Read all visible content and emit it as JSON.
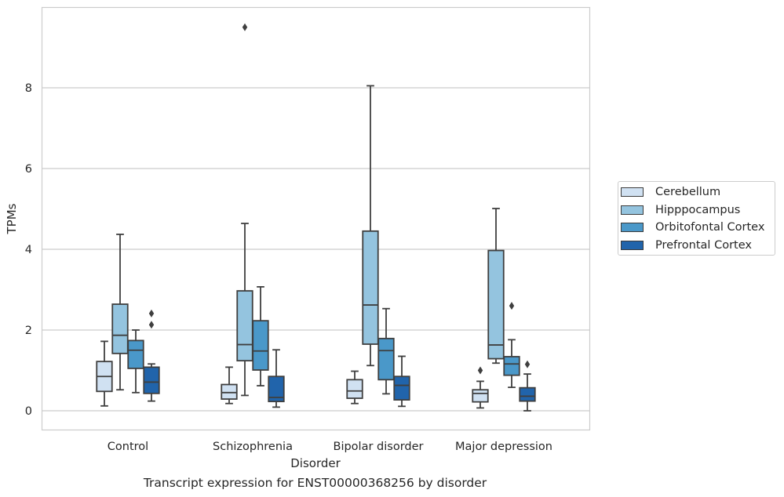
{
  "chart_data": {
    "type": "box",
    "title": "",
    "caption": "Transcript expression for ENST00000368256 by disorder",
    "xlabel": "Disorder",
    "ylabel": "TPMs",
    "ylim": [
      -0.45,
      10.0
    ],
    "yticks": [
      0,
      2,
      4,
      6,
      8
    ],
    "grid": "horizontal",
    "legend_position": "right",
    "categories": [
      "Control",
      "Schizophrenia",
      "Bipolar disorder",
      "Major depression"
    ],
    "series": [
      {
        "name": "Cerebellum",
        "color": "#d0e1f2",
        "boxes": [
          {
            "whisker_low": 0.12,
            "q1": 0.48,
            "median": 0.85,
            "q3": 1.22,
            "whisker_high": 1.72,
            "outliers": []
          },
          {
            "whisker_low": 0.18,
            "q1": 0.29,
            "median": 0.45,
            "q3": 0.65,
            "whisker_high": 1.08,
            "outliers": []
          },
          {
            "whisker_low": 0.18,
            "q1": 0.31,
            "median": 0.49,
            "q3": 0.77,
            "whisker_high": 0.98,
            "outliers": []
          },
          {
            "whisker_low": 0.07,
            "q1": 0.22,
            "median": 0.43,
            "q3": 0.52,
            "whisker_high": 0.73,
            "outliers": [
              1.0
            ]
          }
        ]
      },
      {
        "name": "Hipppocampus",
        "color": "#94c4df",
        "boxes": [
          {
            "whisker_low": 0.52,
            "q1": 1.42,
            "median": 1.87,
            "q3": 2.64,
            "whisker_high": 4.37,
            "outliers": []
          },
          {
            "whisker_low": 0.38,
            "q1": 1.24,
            "median": 1.64,
            "q3": 2.97,
            "whisker_high": 4.64,
            "outliers": [
              9.5
            ]
          },
          {
            "whisker_low": 1.12,
            "q1": 1.65,
            "median": 2.62,
            "q3": 4.45,
            "whisker_high": 8.05,
            "outliers": []
          },
          {
            "whisker_low": 1.18,
            "q1": 1.29,
            "median": 1.63,
            "q3": 3.97,
            "whisker_high": 5.01,
            "outliers": []
          }
        ]
      },
      {
        "name": "Orbitofontal Cortex",
        "color": "#4a98c9",
        "boxes": [
          {
            "whisker_low": 0.45,
            "q1": 1.05,
            "median": 1.5,
            "q3": 1.74,
            "whisker_high": 2.0,
            "outliers": []
          },
          {
            "whisker_low": 0.62,
            "q1": 1.01,
            "median": 1.48,
            "q3": 2.23,
            "whisker_high": 3.07,
            "outliers": []
          },
          {
            "whisker_low": 0.42,
            "q1": 0.77,
            "median": 1.49,
            "q3": 1.79,
            "whisker_high": 2.53,
            "outliers": []
          },
          {
            "whisker_low": 0.58,
            "q1": 0.88,
            "median": 1.16,
            "q3": 1.34,
            "whisker_high": 1.76,
            "outliers": [
              2.6
            ]
          }
        ]
      },
      {
        "name": "Prefrontal Cortex",
        "color": "#2164ab",
        "boxes": [
          {
            "whisker_low": 0.24,
            "q1": 0.43,
            "median": 0.71,
            "q3": 1.08,
            "whisker_high": 1.16,
            "outliers": [
              2.13,
              2.41
            ]
          },
          {
            "whisker_low": 0.09,
            "q1": 0.23,
            "median": 0.33,
            "q3": 0.85,
            "whisker_high": 1.51,
            "outliers": []
          },
          {
            "whisker_low": 0.11,
            "q1": 0.27,
            "median": 0.63,
            "q3": 0.85,
            "whisker_high": 1.35,
            "outliers": []
          },
          {
            "whisker_low": 0.0,
            "q1": 0.24,
            "median": 0.36,
            "q3": 0.57,
            "whisker_high": 0.91,
            "outliers": [
              1.15
            ]
          }
        ]
      }
    ]
  }
}
